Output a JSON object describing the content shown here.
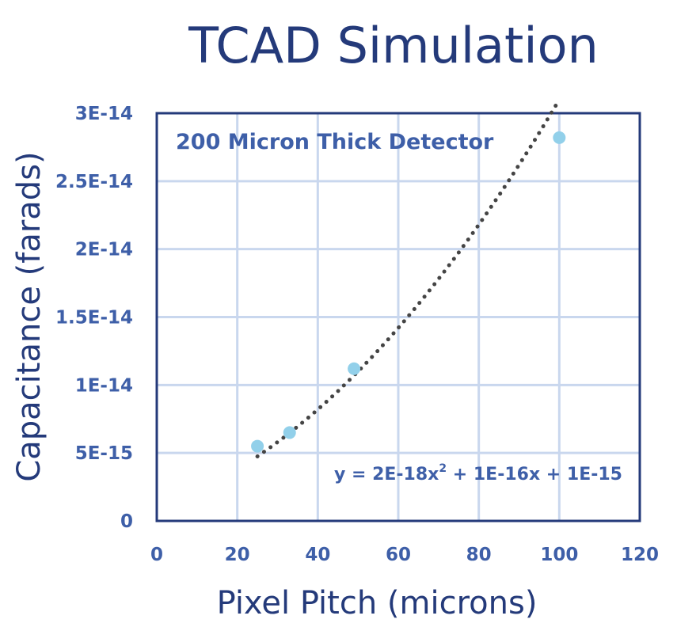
{
  "chart_data": {
    "type": "scatter",
    "title": "TCAD Simulation",
    "xlabel": "Pixel Pitch (microns)",
    "ylabel": "Capacitance (farads)",
    "annotation": "200 Micron Thick Detector",
    "trendline_equation": {
      "base": "y = 2E-18x",
      "superscript": "2",
      "rest": " + 1E-16x + 1E-15"
    },
    "xlim": [
      0,
      120
    ],
    "ylim": [
      0,
      3e-14
    ],
    "x_ticks": [
      0,
      20,
      40,
      60,
      80,
      100,
      120
    ],
    "x_tick_labels": [
      "0",
      "20",
      "40",
      "60",
      "80",
      "100",
      "120"
    ],
    "y_ticks": [
      0,
      5e-15,
      1e-14,
      1.5e-14,
      2e-14,
      2.5e-14,
      3e-14
    ],
    "y_tick_labels": [
      "0",
      "5E-15",
      "1E-14",
      "1.5E-14",
      "2E-14",
      "2.5E-14",
      "3E-14"
    ],
    "grid": true,
    "points": [
      {
        "x": 25,
        "y": 5.5e-15
      },
      {
        "x": 33,
        "y": 6.5e-15
      },
      {
        "x": 49,
        "y": 1.12e-14
      },
      {
        "x": 100,
        "y": 2.82e-14
      }
    ],
    "trendline": {
      "type": "polynomial",
      "coefficients": [
        2e-18,
        1e-16,
        1e-15
      ],
      "x_range": [
        25,
        100
      ]
    },
    "colors": {
      "points": "#92d0ea",
      "trendline": "#444444",
      "title": "#243a7a",
      "ticks": "#3e5fa8",
      "grid": "#c9d7ee"
    }
  }
}
